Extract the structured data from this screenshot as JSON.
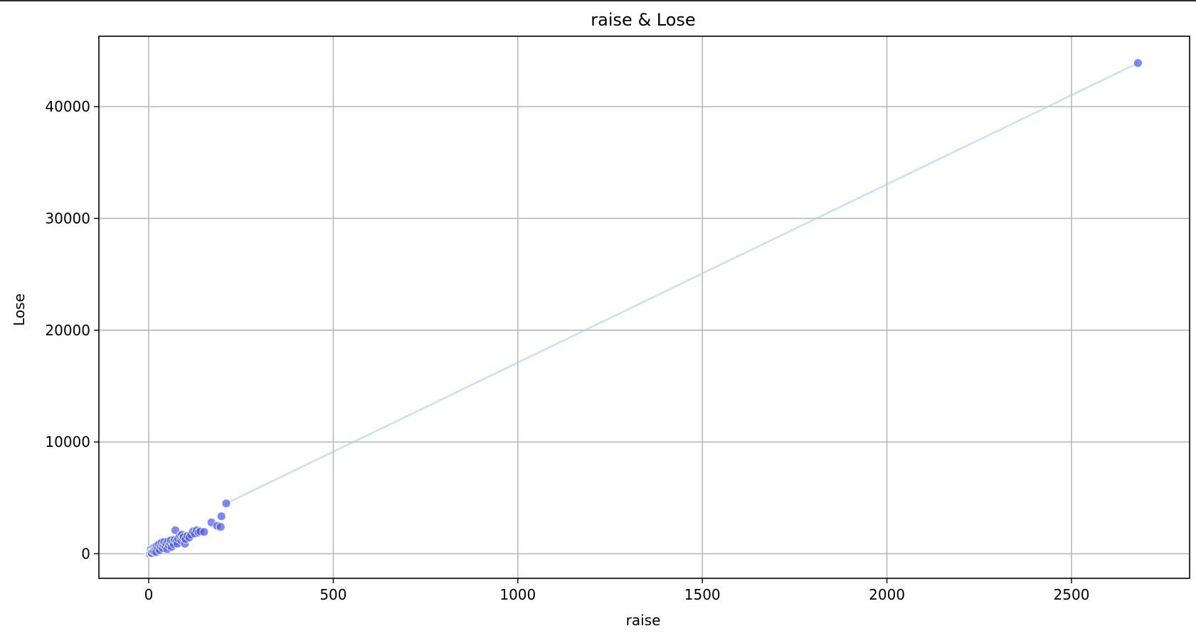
{
  "chart_data": {
    "type": "scatter",
    "title": "raise & Lose",
    "xlabel": "raise",
    "ylabel": "Lose",
    "xlim": [
      -135,
      2820
    ],
    "ylim": [
      -2200,
      46300
    ],
    "xticks": [
      0,
      500,
      1000,
      1500,
      2000,
      2500
    ],
    "yticks": [
      0,
      10000,
      20000,
      30000,
      40000
    ],
    "grid": true,
    "colors": {
      "points": "#4d5ced",
      "point_edge": "#ffffff",
      "line": "#a6d4ec",
      "grid": "#b0b0b0",
      "axes": "#000000"
    },
    "series": [
      {
        "kind": "scatter",
        "x": [
          0,
          1,
          2,
          3,
          4,
          5,
          6,
          7,
          8,
          10,
          12,
          14,
          15,
          17,
          19,
          20,
          22,
          25,
          28,
          30,
          33,
          35,
          38,
          40,
          42,
          45,
          48,
          50,
          52,
          55,
          58,
          60,
          62,
          65,
          68,
          70,
          72,
          75,
          78,
          80,
          85,
          88,
          90,
          92,
          95,
          98,
          100,
          105,
          110,
          115,
          120,
          125,
          130,
          135,
          140,
          150,
          170,
          185,
          195,
          197,
          210,
          2680
        ],
        "y": [
          0,
          80,
          150,
          30,
          250,
          100,
          400,
          200,
          60,
          300,
          500,
          350,
          200,
          600,
          450,
          150,
          700,
          500,
          850,
          300,
          650,
          1000,
          500,
          800,
          1050,
          700,
          900,
          400,
          1100,
          750,
          950,
          1200,
          600,
          1000,
          850,
          1250,
          2100,
          1100,
          900,
          1350,
          1600,
          1200,
          1700,
          1400,
          1500,
          900,
          1300,
          1600,
          1450,
          1700,
          2000,
          1800,
          2100,
          1900,
          2000,
          1950,
          2800,
          2500,
          2400,
          3350,
          4500,
          43900
        ]
      },
      {
        "kind": "line",
        "x": [
          210,
          2680
        ],
        "y": [
          4500,
          43900
        ]
      }
    ]
  }
}
